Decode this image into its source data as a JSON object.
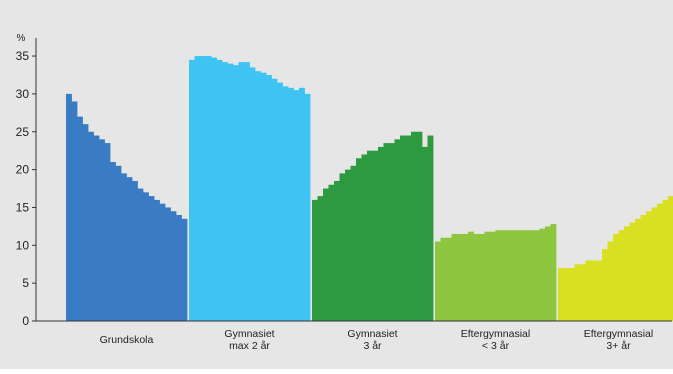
{
  "chart_data": {
    "type": "bar",
    "title": "",
    "xlabel": "",
    "ylabel": "%",
    "ylim": [
      0,
      37
    ],
    "yticks": [
      0,
      5,
      10,
      15,
      20,
      25,
      30,
      35
    ],
    "grid": false,
    "legend": "none",
    "colors": {
      "background": "#e6e6e6",
      "axis": "#333333",
      "text": "#222222",
      "groups": [
        "#3a7cc4",
        "#3ec3f3",
        "#2e9a3f",
        "#8ec63f",
        "#d9e021"
      ]
    },
    "groups": [
      {
        "label_lines": [
          "Grundskola"
        ],
        "values": [
          30,
          29,
          27,
          26,
          25,
          24.5,
          24,
          23.5,
          21,
          20.5,
          19.5,
          19,
          18.5,
          17.5,
          17,
          16.5,
          16,
          15.5,
          15,
          14.5,
          14,
          13.5
        ]
      },
      {
        "label_lines": [
          "Gymnasiet",
          "max 2 år"
        ],
        "values": [
          34.5,
          35,
          35,
          35,
          34.8,
          34.5,
          34.2,
          34,
          33.8,
          34.2,
          34.2,
          33.5,
          33,
          32.8,
          32.5,
          32,
          31.5,
          31,
          30.8,
          30.5,
          30.8,
          30
        ]
      },
      {
        "label_lines": [
          "Gymnasiet",
          "3 år"
        ],
        "values": [
          16,
          16.5,
          17.5,
          18,
          18.5,
          19.5,
          20,
          20.5,
          21.5,
          22,
          22.5,
          22.5,
          23,
          23.5,
          23.5,
          24,
          24.5,
          24.5,
          25,
          25,
          23,
          24.5
        ]
      },
      {
        "label_lines": [
          "Eftergymnasial",
          "< 3 år"
        ],
        "values": [
          10.5,
          11,
          11,
          11.5,
          11.5,
          11.5,
          11.8,
          11.5,
          11.5,
          11.8,
          11.8,
          12,
          12,
          12,
          12,
          12,
          12,
          12,
          12,
          12.2,
          12.5,
          12.8
        ]
      },
      {
        "label_lines": [
          "Eftergymnasial",
          "3+ år"
        ],
        "values": [
          7,
          7,
          7,
          7.5,
          7.5,
          8,
          8,
          8,
          9.5,
          10.5,
          11.5,
          12,
          12.5,
          13,
          13.5,
          14,
          14.5,
          15,
          15.5,
          16,
          16.5,
          17
        ]
      }
    ]
  }
}
